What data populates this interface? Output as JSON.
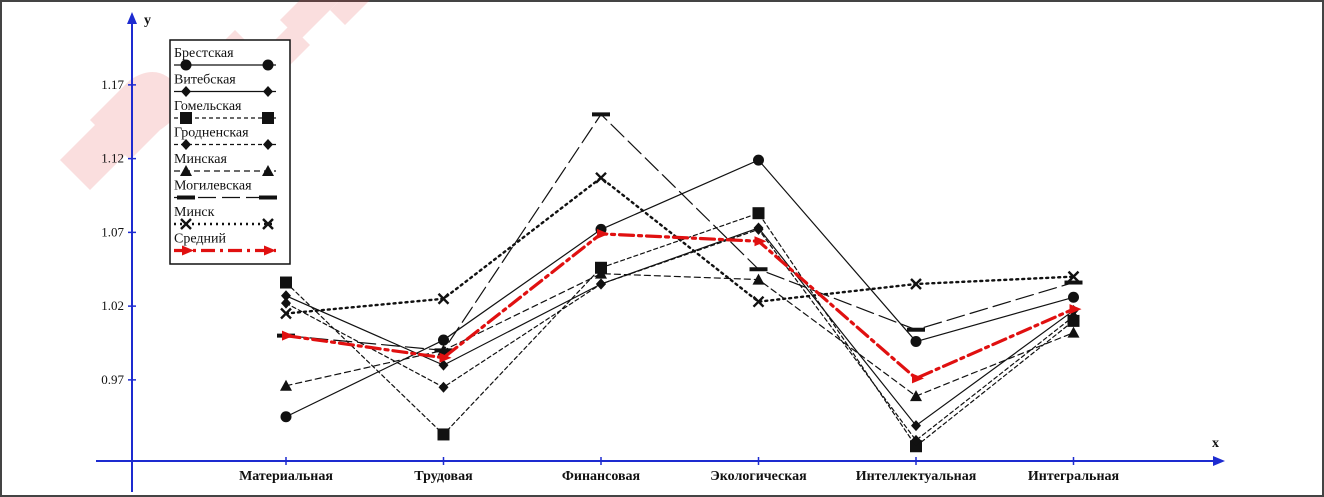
{
  "chart_data": {
    "type": "line",
    "title": "",
    "xlabel": "x",
    "ylabel": "y",
    "categories": [
      "Материальная",
      "Трудовая",
      "Финансовая",
      "Экологическая",
      "Интеллектуальная",
      "Интегральная"
    ],
    "yticks": [
      "0.97",
      "1.02",
      "1.07",
      "1.12",
      "1.17"
    ],
    "ylim": [
      0.915,
      1.22
    ],
    "grid": false,
    "legend_position": "top-left",
    "series": [
      {
        "name": "Брестская",
        "values": [
          0.945,
          0.997,
          1.072,
          1.119,
          0.996,
          1.026
        ],
        "line": "solid",
        "marker": "circle",
        "color": "#111111"
      },
      {
        "name": "Витебская",
        "values": [
          1.027,
          0.98,
          1.035,
          1.073,
          0.939,
          1.017
        ],
        "line": "solid",
        "marker": "diamond",
        "color": "#111111"
      },
      {
        "name": "Гомельская",
        "values": [
          1.036,
          0.933,
          1.046,
          1.083,
          0.925,
          1.01
        ],
        "line": "dashed-fine",
        "marker": "square",
        "color": "#111111"
      },
      {
        "name": "Гродненская",
        "values": [
          1.022,
          0.965,
          1.035,
          1.072,
          0.929,
          1.013
        ],
        "line": "dashed-fine",
        "marker": "diamond",
        "color": "#111111"
      },
      {
        "name": "Минская",
        "values": [
          0.966,
          0.99,
          1.042,
          1.038,
          0.959,
          1.002
        ],
        "line": "dashed",
        "marker": "triangle",
        "color": "#111111"
      },
      {
        "name": "Могилевская",
        "values": [
          1.0,
          0.99,
          1.15,
          1.045,
          1.004,
          1.036
        ],
        "line": "long-dash",
        "marker": "dash",
        "color": "#111111"
      },
      {
        "name": "Минск",
        "values": [
          1.015,
          1.025,
          1.107,
          1.023,
          1.035,
          1.04
        ],
        "line": "dotted",
        "marker": "cross",
        "color": "#111111"
      },
      {
        "name": "Средний",
        "values": [
          1.0,
          0.985,
          1.069,
          1.064,
          0.971,
          1.018
        ],
        "line": "dash-dot",
        "marker": "arrow",
        "color": "#e01010"
      }
    ]
  },
  "watermark_color": "#e53a3a"
}
